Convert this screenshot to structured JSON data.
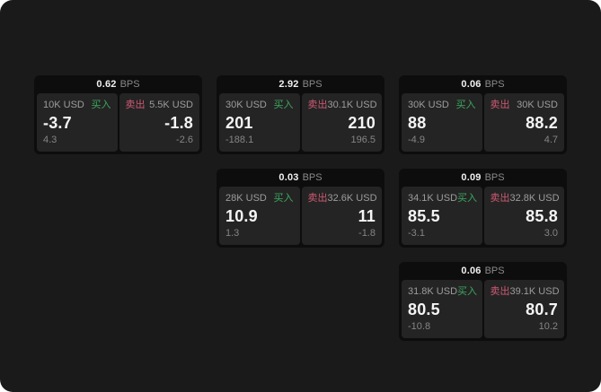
{
  "labels": {
    "bps_unit": "BPS",
    "buy": "买入",
    "sell": "卖出"
  },
  "colors": {
    "page_bg": "#1a1a1a",
    "group_bg": "#0d0d0d",
    "panel_bg": "#242424",
    "buy": "#3da75f",
    "sell": "#ce5a74"
  },
  "groups": [
    {
      "bps": "0.62",
      "buy": {
        "amount": "10K USD",
        "price": "-3.7",
        "delta": "4.3"
      },
      "sell": {
        "amount": "5.5K USD",
        "price": "-1.8",
        "delta": "-2.6"
      }
    },
    {
      "bps": "2.92",
      "buy": {
        "amount": "30K USD",
        "price": "201",
        "delta": "-188.1"
      },
      "sell": {
        "amount": "30.1K USD",
        "price": "210",
        "delta": "196.5"
      }
    },
    {
      "bps": "0.06",
      "buy": {
        "amount": "30K USD",
        "price": "88",
        "delta": "-4.9"
      },
      "sell": {
        "amount": "30K USD",
        "price": "88.2",
        "delta": "4.7"
      }
    },
    {
      "bps": "0.03",
      "buy": {
        "amount": "28K USD",
        "price": "10.9",
        "delta": "1.3"
      },
      "sell": {
        "amount": "32.6K USD",
        "price": "11",
        "delta": "-1.8"
      }
    },
    {
      "bps": "0.09",
      "buy": {
        "amount": "34.1K USD",
        "price": "85.5",
        "delta": "-3.1"
      },
      "sell": {
        "amount": "32.8K USD",
        "price": "85.8",
        "delta": "3.0"
      }
    },
    {
      "bps": "0.06",
      "buy": {
        "amount": "31.8K USD",
        "price": "80.5",
        "delta": "-10.8"
      },
      "sell": {
        "amount": "39.1K USD",
        "price": "80.7",
        "delta": "10.2"
      }
    }
  ]
}
